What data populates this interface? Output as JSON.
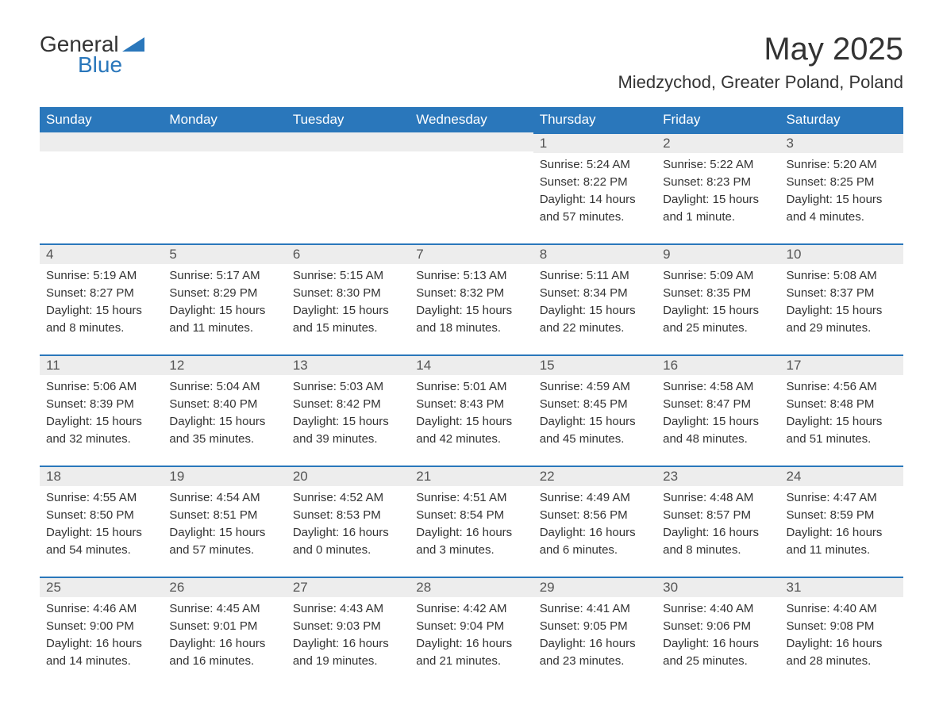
{
  "brand": {
    "text_general": "General",
    "text_blue": "Blue",
    "triangle_color": "#2a77bb"
  },
  "title": "May 2025",
  "location": "Miedzychod, Greater Poland, Poland",
  "colors": {
    "header_bg": "#2a77bb",
    "header_text": "#ffffff",
    "daybar_bg": "#ededed",
    "daybar_border": "#2a77bb",
    "body_text": "#333333",
    "background": "#ffffff"
  },
  "typography": {
    "title_fontsize": 40,
    "location_fontsize": 22,
    "weekday_fontsize": 17,
    "daynum_fontsize": 17,
    "body_fontsize": 15
  },
  "weekdays": [
    "Sunday",
    "Monday",
    "Tuesday",
    "Wednesday",
    "Thursday",
    "Friday",
    "Saturday"
  ],
  "weeks": [
    [
      null,
      null,
      null,
      null,
      {
        "n": "1",
        "sunrise": "Sunrise: 5:24 AM",
        "sunset": "Sunset: 8:22 PM",
        "day1": "Daylight: 14 hours",
        "day2": "and 57 minutes."
      },
      {
        "n": "2",
        "sunrise": "Sunrise: 5:22 AM",
        "sunset": "Sunset: 8:23 PM",
        "day1": "Daylight: 15 hours",
        "day2": "and 1 minute."
      },
      {
        "n": "3",
        "sunrise": "Sunrise: 5:20 AM",
        "sunset": "Sunset: 8:25 PM",
        "day1": "Daylight: 15 hours",
        "day2": "and 4 minutes."
      }
    ],
    [
      {
        "n": "4",
        "sunrise": "Sunrise: 5:19 AM",
        "sunset": "Sunset: 8:27 PM",
        "day1": "Daylight: 15 hours",
        "day2": "and 8 minutes."
      },
      {
        "n": "5",
        "sunrise": "Sunrise: 5:17 AM",
        "sunset": "Sunset: 8:29 PM",
        "day1": "Daylight: 15 hours",
        "day2": "and 11 minutes."
      },
      {
        "n": "6",
        "sunrise": "Sunrise: 5:15 AM",
        "sunset": "Sunset: 8:30 PM",
        "day1": "Daylight: 15 hours",
        "day2": "and 15 minutes."
      },
      {
        "n": "7",
        "sunrise": "Sunrise: 5:13 AM",
        "sunset": "Sunset: 8:32 PM",
        "day1": "Daylight: 15 hours",
        "day2": "and 18 minutes."
      },
      {
        "n": "8",
        "sunrise": "Sunrise: 5:11 AM",
        "sunset": "Sunset: 8:34 PM",
        "day1": "Daylight: 15 hours",
        "day2": "and 22 minutes."
      },
      {
        "n": "9",
        "sunrise": "Sunrise: 5:09 AM",
        "sunset": "Sunset: 8:35 PM",
        "day1": "Daylight: 15 hours",
        "day2": "and 25 minutes."
      },
      {
        "n": "10",
        "sunrise": "Sunrise: 5:08 AM",
        "sunset": "Sunset: 8:37 PM",
        "day1": "Daylight: 15 hours",
        "day2": "and 29 minutes."
      }
    ],
    [
      {
        "n": "11",
        "sunrise": "Sunrise: 5:06 AM",
        "sunset": "Sunset: 8:39 PM",
        "day1": "Daylight: 15 hours",
        "day2": "and 32 minutes."
      },
      {
        "n": "12",
        "sunrise": "Sunrise: 5:04 AM",
        "sunset": "Sunset: 8:40 PM",
        "day1": "Daylight: 15 hours",
        "day2": "and 35 minutes."
      },
      {
        "n": "13",
        "sunrise": "Sunrise: 5:03 AM",
        "sunset": "Sunset: 8:42 PM",
        "day1": "Daylight: 15 hours",
        "day2": "and 39 minutes."
      },
      {
        "n": "14",
        "sunrise": "Sunrise: 5:01 AM",
        "sunset": "Sunset: 8:43 PM",
        "day1": "Daylight: 15 hours",
        "day2": "and 42 minutes."
      },
      {
        "n": "15",
        "sunrise": "Sunrise: 4:59 AM",
        "sunset": "Sunset: 8:45 PM",
        "day1": "Daylight: 15 hours",
        "day2": "and 45 minutes."
      },
      {
        "n": "16",
        "sunrise": "Sunrise: 4:58 AM",
        "sunset": "Sunset: 8:47 PM",
        "day1": "Daylight: 15 hours",
        "day2": "and 48 minutes."
      },
      {
        "n": "17",
        "sunrise": "Sunrise: 4:56 AM",
        "sunset": "Sunset: 8:48 PM",
        "day1": "Daylight: 15 hours",
        "day2": "and 51 minutes."
      }
    ],
    [
      {
        "n": "18",
        "sunrise": "Sunrise: 4:55 AM",
        "sunset": "Sunset: 8:50 PM",
        "day1": "Daylight: 15 hours",
        "day2": "and 54 minutes."
      },
      {
        "n": "19",
        "sunrise": "Sunrise: 4:54 AM",
        "sunset": "Sunset: 8:51 PM",
        "day1": "Daylight: 15 hours",
        "day2": "and 57 minutes."
      },
      {
        "n": "20",
        "sunrise": "Sunrise: 4:52 AM",
        "sunset": "Sunset: 8:53 PM",
        "day1": "Daylight: 16 hours",
        "day2": "and 0 minutes."
      },
      {
        "n": "21",
        "sunrise": "Sunrise: 4:51 AM",
        "sunset": "Sunset: 8:54 PM",
        "day1": "Daylight: 16 hours",
        "day2": "and 3 minutes."
      },
      {
        "n": "22",
        "sunrise": "Sunrise: 4:49 AM",
        "sunset": "Sunset: 8:56 PM",
        "day1": "Daylight: 16 hours",
        "day2": "and 6 minutes."
      },
      {
        "n": "23",
        "sunrise": "Sunrise: 4:48 AM",
        "sunset": "Sunset: 8:57 PM",
        "day1": "Daylight: 16 hours",
        "day2": "and 8 minutes."
      },
      {
        "n": "24",
        "sunrise": "Sunrise: 4:47 AM",
        "sunset": "Sunset: 8:59 PM",
        "day1": "Daylight: 16 hours",
        "day2": "and 11 minutes."
      }
    ],
    [
      {
        "n": "25",
        "sunrise": "Sunrise: 4:46 AM",
        "sunset": "Sunset: 9:00 PM",
        "day1": "Daylight: 16 hours",
        "day2": "and 14 minutes."
      },
      {
        "n": "26",
        "sunrise": "Sunrise: 4:45 AM",
        "sunset": "Sunset: 9:01 PM",
        "day1": "Daylight: 16 hours",
        "day2": "and 16 minutes."
      },
      {
        "n": "27",
        "sunrise": "Sunrise: 4:43 AM",
        "sunset": "Sunset: 9:03 PM",
        "day1": "Daylight: 16 hours",
        "day2": "and 19 minutes."
      },
      {
        "n": "28",
        "sunrise": "Sunrise: 4:42 AM",
        "sunset": "Sunset: 9:04 PM",
        "day1": "Daylight: 16 hours",
        "day2": "and 21 minutes."
      },
      {
        "n": "29",
        "sunrise": "Sunrise: 4:41 AM",
        "sunset": "Sunset: 9:05 PM",
        "day1": "Daylight: 16 hours",
        "day2": "and 23 minutes."
      },
      {
        "n": "30",
        "sunrise": "Sunrise: 4:40 AM",
        "sunset": "Sunset: 9:06 PM",
        "day1": "Daylight: 16 hours",
        "day2": "and 25 minutes."
      },
      {
        "n": "31",
        "sunrise": "Sunrise: 4:40 AM",
        "sunset": "Sunset: 9:08 PM",
        "day1": "Daylight: 16 hours",
        "day2": "and 28 minutes."
      }
    ]
  ]
}
